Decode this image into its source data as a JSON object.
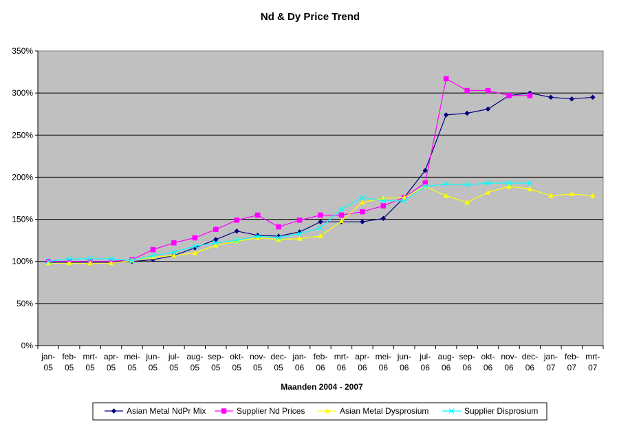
{
  "chart_data": {
    "type": "line",
    "title": "Nd & Dy Price Trend",
    "xlabel": "Maanden 2004  - 2007",
    "ylabel": "",
    "ylim": [
      0,
      350
    ],
    "y_ticks": [
      0,
      50,
      100,
      150,
      200,
      250,
      300,
      350
    ],
    "y_tick_labels": [
      "0%",
      "50%",
      "100%",
      "150%",
      "200%",
      "250%",
      "300%",
      "350%"
    ],
    "grid": "horizontal",
    "plot_background": "#c0c0c0",
    "legend_position": "bottom",
    "categories": [
      [
        "jan-",
        "05"
      ],
      [
        "feb-",
        "05"
      ],
      [
        "mrt-",
        "05"
      ],
      [
        "apr-",
        "05"
      ],
      [
        "mei-",
        "05"
      ],
      [
        "jun-",
        "05"
      ],
      [
        "jul-",
        "05"
      ],
      [
        "aug-",
        "05"
      ],
      [
        "sep-",
        "05"
      ],
      [
        "okt-",
        "05"
      ],
      [
        "nov-",
        "05"
      ],
      [
        "dec-",
        "05"
      ],
      [
        "jan-",
        "06"
      ],
      [
        "feb-",
        "06"
      ],
      [
        "mrt-",
        "06"
      ],
      [
        "apr-",
        "06"
      ],
      [
        "mei-",
        "06"
      ],
      [
        "jun-",
        "06"
      ],
      [
        "jul-",
        "06"
      ],
      [
        "aug-",
        "06"
      ],
      [
        "sep-",
        "06"
      ],
      [
        "okt-",
        "06"
      ],
      [
        "nov-",
        "06"
      ],
      [
        "dec-",
        "06"
      ],
      [
        "jan-",
        "07"
      ],
      [
        "feb-",
        "07"
      ],
      [
        "mrt-",
        "07"
      ]
    ],
    "series": [
      {
        "name": "Asian Metal NdPr Mix",
        "color": "#000080",
        "marker": "diamond",
        "values": [
          99,
          99,
          99,
          99,
          100,
          102,
          107,
          116,
          126,
          136,
          131,
          130,
          135,
          147,
          147,
          147,
          151,
          176,
          208,
          274,
          276,
          281,
          297,
          300,
          295,
          293,
          295
        ]
      },
      {
        "name": "Supplier Nd Prices",
        "color": "#ff00ff",
        "marker": "square",
        "values": [
          100,
          100,
          100,
          100,
          102,
          114,
          122,
          128,
          138,
          149,
          155,
          141,
          149,
          155,
          155,
          159,
          166,
          176,
          193,
          317,
          303,
          303,
          297,
          297,
          null,
          null,
          null
        ]
      },
      {
        "name": "Asian Metal Dysprosium",
        "color": "#ffff00",
        "marker": "triangle",
        "values": [
          98,
          98,
          98,
          98,
          101,
          105,
          107,
          110,
          119,
          124,
          128,
          126,
          127,
          130,
          148,
          170,
          175,
          176,
          189,
          178,
          170,
          182,
          189,
          186,
          178,
          180,
          178
        ]
      },
      {
        "name": "Supplier Disprosium",
        "color": "#00ffff",
        "marker": "x",
        "values": [
          100,
          103,
          103,
          103,
          101,
          107,
          111,
          118,
          122,
          125,
          130,
          128,
          133,
          140,
          162,
          176,
          172,
          172,
          189,
          192,
          191,
          193,
          193,
          193,
          null,
          null,
          null
        ]
      }
    ]
  }
}
